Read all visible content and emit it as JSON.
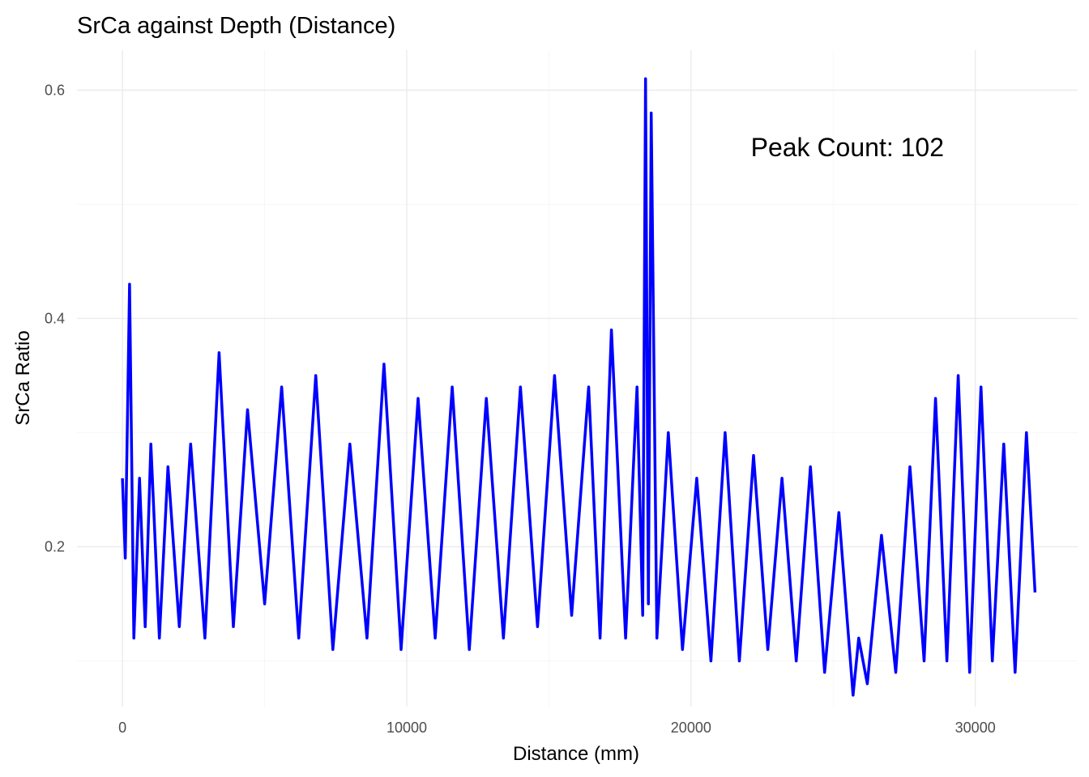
{
  "chart_data": {
    "type": "line",
    "title": "SrCa against Depth (Distance)",
    "xlabel": "Distance (mm)",
    "ylabel": "SrCa Ratio",
    "xlim": [
      -1600,
      33600
    ],
    "ylim": [
      0.06,
      0.635
    ],
    "xticks": [
      0,
      10000,
      20000,
      30000
    ],
    "xtick_labels": [
      "0",
      "10000",
      "20000",
      "30000"
    ],
    "yticks": [
      0.2,
      0.4,
      0.6
    ],
    "ytick_labels": [
      "0.2",
      "0.4",
      "0.6"
    ],
    "annotation": {
      "text": "Peak Count: 102",
      "x": 25500,
      "y": 0.55
    },
    "grid": true,
    "series": [
      {
        "color": "#0000FF",
        "x": [
          0,
          100,
          250,
          400,
          600,
          800,
          1000,
          1300,
          1600,
          2000,
          2400,
          2900,
          3400,
          3900,
          4400,
          5000,
          5600,
          6200,
          6800,
          7400,
          8000,
          8600,
          9200,
          9800,
          10400,
          11000,
          11600,
          12200,
          12800,
          13400,
          14000,
          14600,
          15200,
          15800,
          16400,
          16800,
          17200,
          17700,
          18100,
          18300,
          18400,
          18500,
          18600,
          18800,
          19200,
          19700,
          20200,
          20700,
          21200,
          21700,
          22200,
          22700,
          23200,
          23700,
          24200,
          24700,
          25200,
          25700,
          25900,
          26200,
          26700,
          27200,
          27700,
          28200,
          28600,
          29000,
          29400,
          29800,
          30200,
          30600,
          31000,
          31400,
          31800,
          32100
        ],
        "y": [
          0.26,
          0.19,
          0.43,
          0.12,
          0.26,
          0.13,
          0.29,
          0.12,
          0.27,
          0.13,
          0.29,
          0.12,
          0.37,
          0.13,
          0.32,
          0.15,
          0.34,
          0.12,
          0.35,
          0.11,
          0.29,
          0.12,
          0.36,
          0.11,
          0.33,
          0.12,
          0.34,
          0.11,
          0.33,
          0.12,
          0.34,
          0.13,
          0.35,
          0.14,
          0.34,
          0.12,
          0.39,
          0.12,
          0.34,
          0.14,
          0.61,
          0.15,
          0.58,
          0.12,
          0.3,
          0.11,
          0.26,
          0.1,
          0.3,
          0.1,
          0.28,
          0.11,
          0.26,
          0.1,
          0.27,
          0.09,
          0.23,
          0.07,
          0.12,
          0.08,
          0.21,
          0.09,
          0.27,
          0.1,
          0.33,
          0.1,
          0.35,
          0.09,
          0.34,
          0.1,
          0.29,
          0.09,
          0.3,
          0.16
        ]
      }
    ]
  }
}
